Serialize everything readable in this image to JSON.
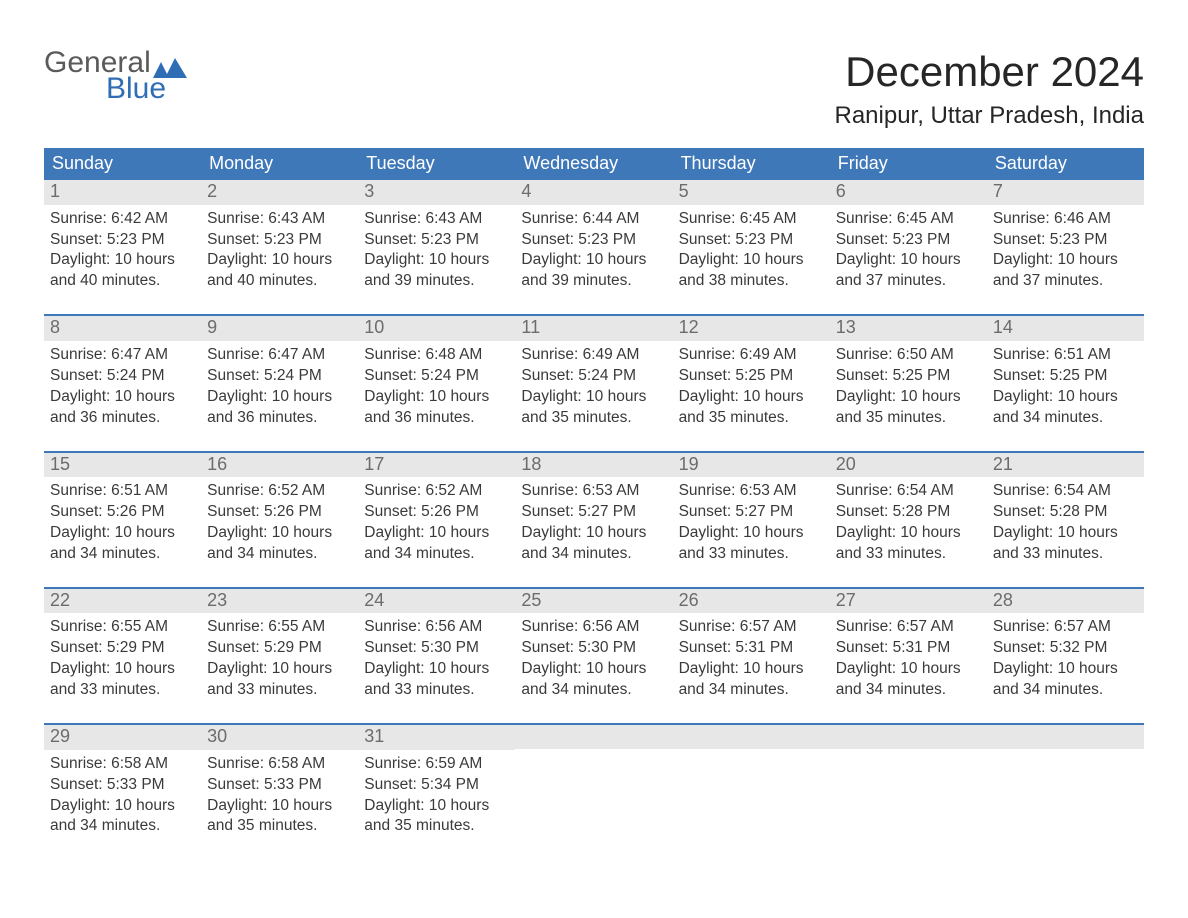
{
  "logo": {
    "line1": "General",
    "line2": "Blue"
  },
  "title": "December 2024",
  "location": "Ranipur, Uttar Pradesh, India",
  "colors": {
    "header_bg": "#3f78b9",
    "header_text": "#ffffff",
    "daynum_bg": "#e7e7e7",
    "daynum_text": "#6c6c6c",
    "body_text": "#3a3a3a",
    "logo_gray": "#5a5a5a",
    "logo_blue": "#2f6eb5",
    "page_bg": "#ffffff",
    "week_border": "#3f78b9"
  },
  "fonts": {
    "title_size_pt": 32,
    "location_size_pt": 18,
    "weekday_size_pt": 14,
    "daynum_size_pt": 14,
    "body_size_pt": 12,
    "family": "Arial"
  },
  "weekdays": [
    "Sunday",
    "Monday",
    "Tuesday",
    "Wednesday",
    "Thursday",
    "Friday",
    "Saturday"
  ],
  "weeks": [
    [
      {
        "num": "1",
        "sunrise": "Sunrise: 6:42 AM",
        "sunset": "Sunset: 5:23 PM",
        "daylight": "Daylight: 10 hours and 40 minutes."
      },
      {
        "num": "2",
        "sunrise": "Sunrise: 6:43 AM",
        "sunset": "Sunset: 5:23 PM",
        "daylight": "Daylight: 10 hours and 40 minutes."
      },
      {
        "num": "3",
        "sunrise": "Sunrise: 6:43 AM",
        "sunset": "Sunset: 5:23 PM",
        "daylight": "Daylight: 10 hours and 39 minutes."
      },
      {
        "num": "4",
        "sunrise": "Sunrise: 6:44 AM",
        "sunset": "Sunset: 5:23 PM",
        "daylight": "Daylight: 10 hours and 39 minutes."
      },
      {
        "num": "5",
        "sunrise": "Sunrise: 6:45 AM",
        "sunset": "Sunset: 5:23 PM",
        "daylight": "Daylight: 10 hours and 38 minutes."
      },
      {
        "num": "6",
        "sunrise": "Sunrise: 6:45 AM",
        "sunset": "Sunset: 5:23 PM",
        "daylight": "Daylight: 10 hours and 37 minutes."
      },
      {
        "num": "7",
        "sunrise": "Sunrise: 6:46 AM",
        "sunset": "Sunset: 5:23 PM",
        "daylight": "Daylight: 10 hours and 37 minutes."
      }
    ],
    [
      {
        "num": "8",
        "sunrise": "Sunrise: 6:47 AM",
        "sunset": "Sunset: 5:24 PM",
        "daylight": "Daylight: 10 hours and 36 minutes."
      },
      {
        "num": "9",
        "sunrise": "Sunrise: 6:47 AM",
        "sunset": "Sunset: 5:24 PM",
        "daylight": "Daylight: 10 hours and 36 minutes."
      },
      {
        "num": "10",
        "sunrise": "Sunrise: 6:48 AM",
        "sunset": "Sunset: 5:24 PM",
        "daylight": "Daylight: 10 hours and 36 minutes."
      },
      {
        "num": "11",
        "sunrise": "Sunrise: 6:49 AM",
        "sunset": "Sunset: 5:24 PM",
        "daylight": "Daylight: 10 hours and 35 minutes."
      },
      {
        "num": "12",
        "sunrise": "Sunrise: 6:49 AM",
        "sunset": "Sunset: 5:25 PM",
        "daylight": "Daylight: 10 hours and 35 minutes."
      },
      {
        "num": "13",
        "sunrise": "Sunrise: 6:50 AM",
        "sunset": "Sunset: 5:25 PM",
        "daylight": "Daylight: 10 hours and 35 minutes."
      },
      {
        "num": "14",
        "sunrise": "Sunrise: 6:51 AM",
        "sunset": "Sunset: 5:25 PM",
        "daylight": "Daylight: 10 hours and 34 minutes."
      }
    ],
    [
      {
        "num": "15",
        "sunrise": "Sunrise: 6:51 AM",
        "sunset": "Sunset: 5:26 PM",
        "daylight": "Daylight: 10 hours and 34 minutes."
      },
      {
        "num": "16",
        "sunrise": "Sunrise: 6:52 AM",
        "sunset": "Sunset: 5:26 PM",
        "daylight": "Daylight: 10 hours and 34 minutes."
      },
      {
        "num": "17",
        "sunrise": "Sunrise: 6:52 AM",
        "sunset": "Sunset: 5:26 PM",
        "daylight": "Daylight: 10 hours and 34 minutes."
      },
      {
        "num": "18",
        "sunrise": "Sunrise: 6:53 AM",
        "sunset": "Sunset: 5:27 PM",
        "daylight": "Daylight: 10 hours and 34 minutes."
      },
      {
        "num": "19",
        "sunrise": "Sunrise: 6:53 AM",
        "sunset": "Sunset: 5:27 PM",
        "daylight": "Daylight: 10 hours and 33 minutes."
      },
      {
        "num": "20",
        "sunrise": "Sunrise: 6:54 AM",
        "sunset": "Sunset: 5:28 PM",
        "daylight": "Daylight: 10 hours and 33 minutes."
      },
      {
        "num": "21",
        "sunrise": "Sunrise: 6:54 AM",
        "sunset": "Sunset: 5:28 PM",
        "daylight": "Daylight: 10 hours and 33 minutes."
      }
    ],
    [
      {
        "num": "22",
        "sunrise": "Sunrise: 6:55 AM",
        "sunset": "Sunset: 5:29 PM",
        "daylight": "Daylight: 10 hours and 33 minutes."
      },
      {
        "num": "23",
        "sunrise": "Sunrise: 6:55 AM",
        "sunset": "Sunset: 5:29 PM",
        "daylight": "Daylight: 10 hours and 33 minutes."
      },
      {
        "num": "24",
        "sunrise": "Sunrise: 6:56 AM",
        "sunset": "Sunset: 5:30 PM",
        "daylight": "Daylight: 10 hours and 33 minutes."
      },
      {
        "num": "25",
        "sunrise": "Sunrise: 6:56 AM",
        "sunset": "Sunset: 5:30 PM",
        "daylight": "Daylight: 10 hours and 34 minutes."
      },
      {
        "num": "26",
        "sunrise": "Sunrise: 6:57 AM",
        "sunset": "Sunset: 5:31 PM",
        "daylight": "Daylight: 10 hours and 34 minutes."
      },
      {
        "num": "27",
        "sunrise": "Sunrise: 6:57 AM",
        "sunset": "Sunset: 5:31 PM",
        "daylight": "Daylight: 10 hours and 34 minutes."
      },
      {
        "num": "28",
        "sunrise": "Sunrise: 6:57 AM",
        "sunset": "Sunset: 5:32 PM",
        "daylight": "Daylight: 10 hours and 34 minutes."
      }
    ],
    [
      {
        "num": "29",
        "sunrise": "Sunrise: 6:58 AM",
        "sunset": "Sunset: 5:33 PM",
        "daylight": "Daylight: 10 hours and 34 minutes."
      },
      {
        "num": "30",
        "sunrise": "Sunrise: 6:58 AM",
        "sunset": "Sunset: 5:33 PM",
        "daylight": "Daylight: 10 hours and 35 minutes."
      },
      {
        "num": "31",
        "sunrise": "Sunrise: 6:59 AM",
        "sunset": "Sunset: 5:34 PM",
        "daylight": "Daylight: 10 hours and 35 minutes."
      },
      null,
      null,
      null,
      null
    ]
  ]
}
